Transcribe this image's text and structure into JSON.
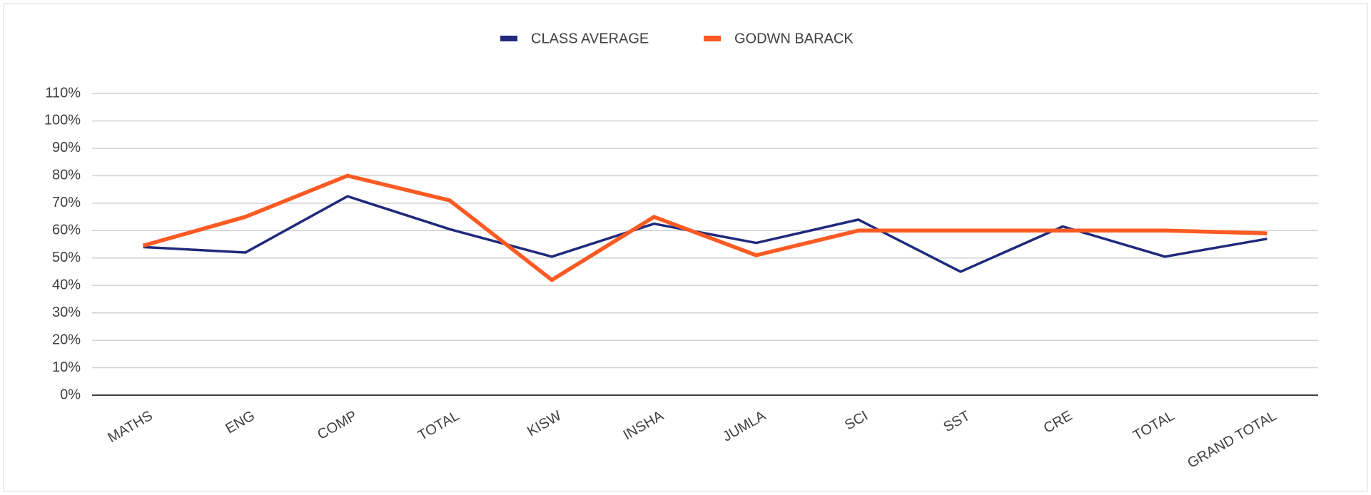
{
  "chart_data": {
    "type": "line",
    "categories": [
      "MATHS",
      "ENG",
      "COMP",
      "TOTAL",
      "KISW",
      "INSHA",
      "JUMLA",
      "SCI",
      "SST",
      "CRE",
      "TOTAL",
      "GRAND TOTAL"
    ],
    "series": [
      {
        "name": "CLASS AVERAGE",
        "color": "#1f2a7c",
        "values": [
          54,
          52,
          72.5,
          60.5,
          50.5,
          62.5,
          55.5,
          64,
          45,
          61.5,
          50.5,
          57
        ]
      },
      {
        "name": "GODWN BARACK",
        "color": "#fc5a23",
        "values": [
          54.5,
          65,
          80,
          71,
          42,
          65,
          51,
          60,
          60,
          60,
          60,
          59
        ]
      }
    ],
    "ylim": [
      0,
      110
    ],
    "yticks": [
      {
        "value": 0,
        "label": "0%"
      },
      {
        "value": 10,
        "label": "10%"
      },
      {
        "value": 20,
        "label": "20%"
      },
      {
        "value": 30,
        "label": "30%"
      },
      {
        "value": 40,
        "label": "40%"
      },
      {
        "value": 50,
        "label": "50%"
      },
      {
        "value": 60,
        "label": "60%"
      },
      {
        "value": 70,
        "label": "70%"
      },
      {
        "value": 80,
        "label": "80%"
      },
      {
        "value": 90,
        "label": "90%"
      },
      {
        "value": 100,
        "label": "100%"
      },
      {
        "value": 110,
        "label": "110%"
      }
    ],
    "grid": true,
    "legend": "top"
  }
}
